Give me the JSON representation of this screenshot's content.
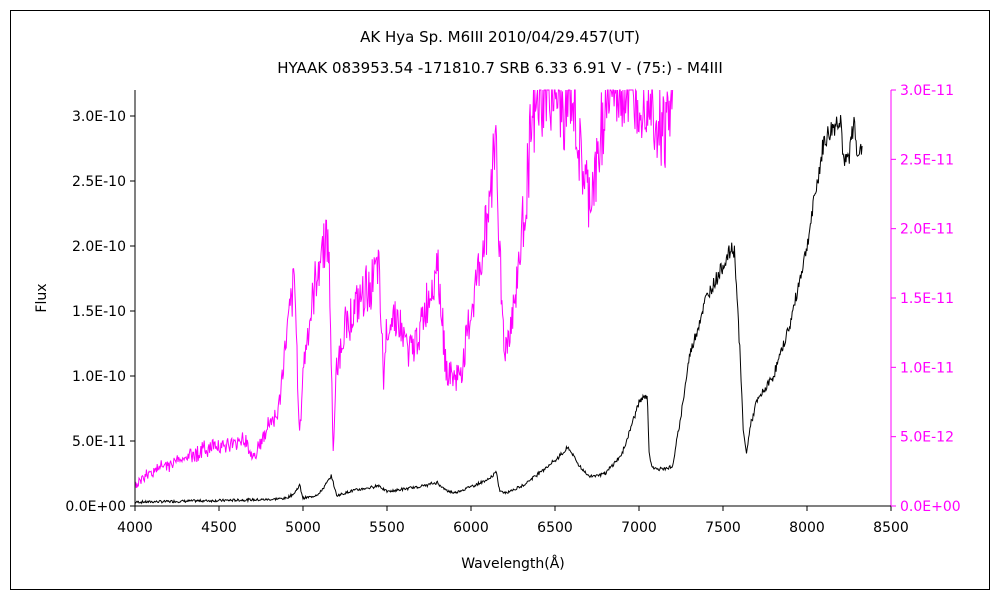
{
  "chart_data": {
    "type": "line",
    "title": "AK Hya   Sp. M6III     2010/04/29.457(UT)",
    "subtitle": "HYAAK 083953.54 -171810.7 SRB 6.33 6.91 V - (75:) - M4III",
    "xlabel": "Wavelength(Å)",
    "ylabel": "Flux",
    "xlim": [
      4000,
      8500
    ],
    "ylim_left": [
      0,
      3.2e-10
    ],
    "ylim_right": [
      0,
      3e-11
    ],
    "x_ticks": [
      "4000",
      "4500",
      "5000",
      "5500",
      "6000",
      "6500",
      "7000",
      "7500",
      "8000",
      "8500"
    ],
    "y_ticks_left": [
      "0.0E+00",
      "5.0E-11",
      "1.0E-10",
      "1.5E-10",
      "2.0E-10",
      "2.5E-10",
      "3.0E-10"
    ],
    "y_ticks_right": [
      "0.0E+00",
      "5.0E-12",
      "1.0E-11",
      "1.5E-11",
      "2.0E-11",
      "2.5E-11",
      "3.0E-11"
    ],
    "grid": false,
    "colors": {
      "left_series": "#000000",
      "right_series": "#ff00ff",
      "axes": "#000000",
      "frame": "#000000"
    },
    "series": [
      {
        "axis": "left",
        "x": [
          4000,
          4200,
          4400,
          4600,
          4700,
          4800,
          4900,
          4950,
          4980,
          5000,
          5050,
          5100,
          5170,
          5200,
          5300,
          5400,
          5450,
          5500,
          5600,
          5700,
          5800,
          5850,
          5900,
          6000,
          6100,
          6150,
          6170,
          6200,
          6300,
          6400,
          6500,
          6580,
          6650,
          6700,
          6800,
          6900,
          6950,
          7000,
          7050,
          7060,
          7080,
          7100,
          7200,
          7250,
          7300,
          7400,
          7500,
          7550,
          7570,
          7600,
          7620,
          7640,
          7660,
          7700,
          7800,
          7900,
          8000,
          8100,
          8150,
          8200,
          8220,
          8250,
          8280,
          8300,
          8330
        ],
        "values": [
          3e-12,
          3.5e-12,
          4e-12,
          4.5e-12,
          4.8e-12,
          5e-12,
          6e-12,
          1e-11,
          1.6e-11,
          6e-12,
          7e-12,
          1e-11,
          2.3e-11,
          8e-12,
          1.2e-11,
          1.4e-11,
          1.6e-11,
          1.1e-11,
          1.3e-11,
          1.5e-11,
          1.8e-11,
          1.2e-11,
          1e-11,
          1.5e-11,
          2e-11,
          2.6e-11,
          1.2e-11,
          1e-11,
          1.5e-11,
          2.5e-11,
          3.5e-11,
          4.5e-11,
          3e-11,
          2.3e-11,
          2.5e-11,
          4e-11,
          6e-11,
          8e-11,
          8.5e-11,
          4e-11,
          3e-11,
          2.8e-11,
          3e-11,
          7e-11,
          1.15e-10,
          1.6e-10,
          1.85e-10,
          1.98e-10,
          1.95e-10,
          1.2e-10,
          6e-11,
          4e-11,
          6e-11,
          8e-11,
          1e-10,
          1.4e-10,
          2e-10,
          2.8e-10,
          2.9e-10,
          3e-10,
          2.6e-10,
          2.7e-10,
          2.95e-10,
          2.75e-10,
          2.7e-10
        ]
      },
      {
        "axis": "right",
        "x": [
          4000,
          4100,
          4200,
          4300,
          4400,
          4500,
          4550,
          4600,
          4650,
          4700,
          4750,
          4800,
          4850,
          4900,
          4950,
          4980,
          5000,
          5050,
          5100,
          5150,
          5180,
          5200,
          5250,
          5300,
          5350,
          5400,
          5450,
          5480,
          5500,
          5550,
          5600,
          5650,
          5700,
          5750,
          5800,
          5850,
          5900,
          5950,
          6000,
          6050,
          6100,
          6150,
          6180,
          6200,
          6250,
          6300,
          6350,
          6400,
          6450,
          6500,
          6550,
          6600,
          6650,
          6700,
          6750,
          6800,
          6850,
          6900,
          7000,
          7080,
          7100,
          7150,
          7200
        ],
        "values": [
          1.5e-12,
          2.5e-12,
          3e-12,
          3.5e-12,
          4e-12,
          4.5e-12,
          4.3e-12,
          4.5e-12,
          5e-12,
          3.5e-12,
          4.5e-12,
          6e-12,
          6.5e-12,
          1.2e-11,
          1.6e-11,
          5e-12,
          1e-11,
          1.4e-11,
          1.8e-11,
          2e-11,
          4e-12,
          1e-11,
          1.3e-11,
          1.4e-11,
          1.5e-11,
          1.6e-11,
          1.7e-11,
          9e-12,
          1.3e-11,
          1.4e-11,
          1.2e-11,
          1.1e-11,
          1.3e-11,
          1.5e-11,
          1.8e-11,
          1e-11,
          9e-12,
          1e-11,
          1.4e-11,
          1.7e-11,
          2.1e-11,
          2.7e-11,
          1.5e-11,
          1.1e-11,
          1.4e-11,
          1.9e-11,
          2.6e-11,
          2.9e-11,
          3e-11,
          3e-11,
          2.8e-11,
          3e-11,
          2.5e-11,
          2.2e-11,
          2.4e-11,
          3e-11,
          3e-11,
          3e-11,
          3e-11,
          3e-11,
          2.8e-11,
          2.7e-11,
          2.9e-11
        ]
      }
    ]
  }
}
